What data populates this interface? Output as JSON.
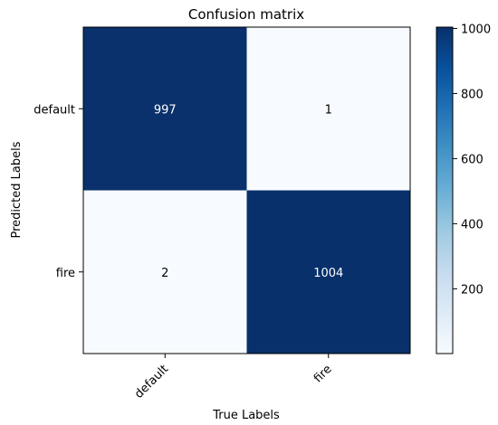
{
  "chart_data": {
    "type": "heatmap",
    "title": "Confusion matrix",
    "xlabel": "True Labels",
    "ylabel": "Predicted Labels",
    "x_categories": [
      "default",
      "fire"
    ],
    "y_categories": [
      "default",
      "fire"
    ],
    "values": [
      [
        997,
        1
      ],
      [
        2,
        1004
      ]
    ],
    "cell_labels": [
      [
        "997",
        "1"
      ],
      [
        "2",
        "1004"
      ]
    ],
    "colormap": "Blues",
    "colors": {
      "low": "#f7fbff",
      "high": "#08306b"
    },
    "colorbar": {
      "range": [
        1,
        1004
      ],
      "ticks": [
        200,
        400,
        600,
        800,
        1000
      ],
      "tick_labels": [
        "200",
        "400",
        "600",
        "800",
        "1000"
      ]
    }
  }
}
